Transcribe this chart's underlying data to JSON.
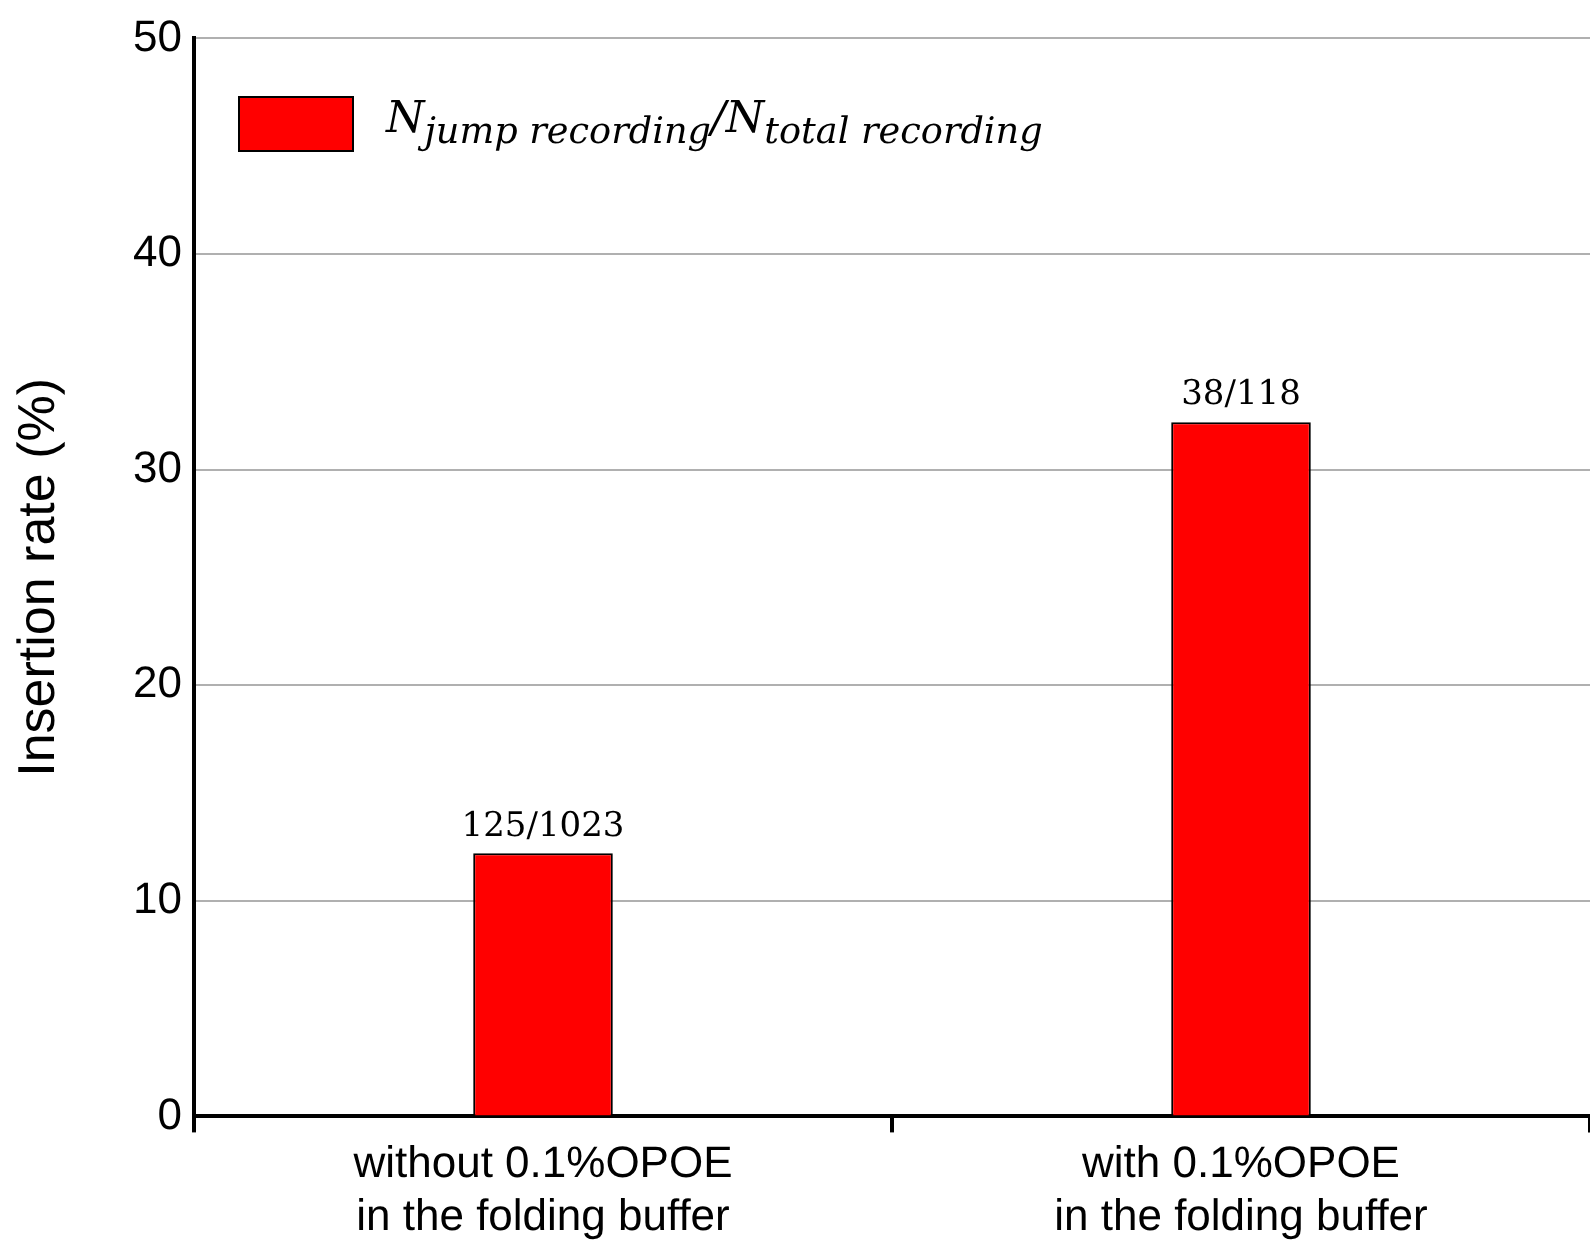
{
  "chart_data": {
    "type": "bar",
    "ylabel": "Insertion rate (%)",
    "categories": [
      "without 0.1%OPOE\nin the folding buffer",
      "with 0.1%OPOE\nin the folding buffer"
    ],
    "series": [
      {
        "name": "N$_{jump recording}$/N$_{total recording}$",
        "color": "#ff0000",
        "values": [
          12.2,
          32.2
        ],
        "value_labels": [
          "125/1023",
          "38/118"
        ]
      }
    ],
    "ylim": [
      0,
      50
    ],
    "yticks": [
      0,
      10,
      20,
      30,
      40,
      50
    ],
    "grid": "y",
    "legend": "top left"
  }
}
